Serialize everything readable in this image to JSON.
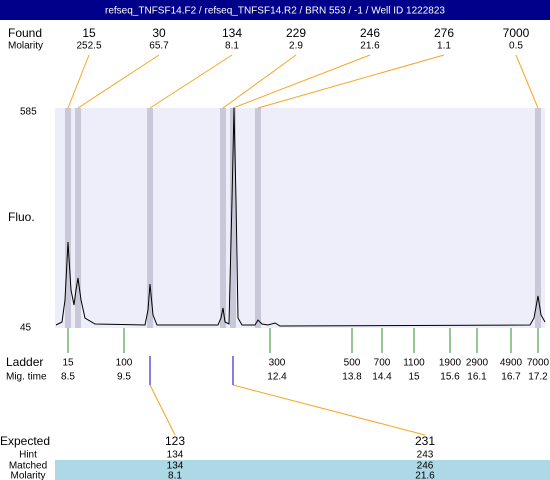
{
  "header": {
    "title": "refseq_TNFSF14.F2 / refseq_TNFSF14.R2 / BRN 553 / -1 / Well ID 1222823"
  },
  "found": {
    "label": "Found",
    "sizes": [
      15,
      30,
      134,
      229,
      246,
      276,
      7000
    ],
    "molarity_label": "Molarity",
    "molarity": [
      252.5,
      65.7,
      8.1,
      2.9,
      21.6,
      1.1,
      0.5
    ]
  },
  "axis": {
    "label": "Fluo.",
    "top": 585,
    "bottom": 45
  },
  "ladder": {
    "label": "Ladder",
    "sizes": [
      15,
      100,
      300,
      500,
      700,
      1100,
      1900,
      2900,
      4900,
      7000
    ],
    "time_label": "Mig. time",
    "times": [
      8.5,
      9.5,
      12.4,
      13.8,
      14.4,
      15,
      15.6,
      16.1,
      16.7,
      17.2
    ]
  },
  "expected": {
    "label": "Expected",
    "values": [
      123,
      231
    ],
    "hint_label": "Hint",
    "hint": [
      134,
      243
    ],
    "matched_label": "Matched",
    "matched": [
      134,
      246
    ],
    "molarity_label": "Molarity",
    "molarity": [
      8.1,
      21.6
    ]
  }
}
